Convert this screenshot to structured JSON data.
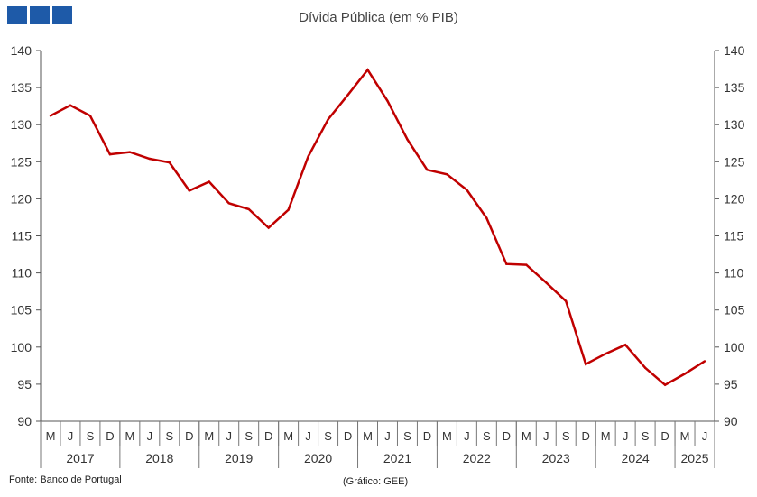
{
  "header": {
    "logo_icon": "three-blue-squares-logo",
    "logo_color": "#1e5aa8"
  },
  "footer": {
    "source": "Fonte: Banco de Portugal",
    "credit": "(Gráfico: GEE)"
  },
  "chart_data": {
    "type": "line",
    "title": "Dívida Pública (em % PIB)",
    "xlabel": "",
    "ylabel": "",
    "ylim": [
      90,
      140
    ],
    "yticks": [
      90,
      95,
      100,
      105,
      110,
      115,
      120,
      125,
      130,
      135,
      140
    ],
    "y_axis_both_sides": true,
    "grid": false,
    "line_color": "#c00000",
    "categories": [
      "M",
      "J",
      "S",
      "D",
      "M",
      "J",
      "S",
      "D",
      "M",
      "J",
      "S",
      "D",
      "M",
      "J",
      "S",
      "D",
      "M",
      "J",
      "S",
      "D",
      "M",
      "J",
      "S",
      "D",
      "M",
      "J",
      "S",
      "D",
      "M",
      "J",
      "S",
      "D",
      "M",
      "J"
    ],
    "years": [
      {
        "label": "2017",
        "count": 4
      },
      {
        "label": "2018",
        "count": 4
      },
      {
        "label": "2019",
        "count": 4
      },
      {
        "label": "2020",
        "count": 4
      },
      {
        "label": "2021",
        "count": 4
      },
      {
        "label": "2022",
        "count": 4
      },
      {
        "label": "2023",
        "count": 4
      },
      {
        "label": "2024",
        "count": 4
      },
      {
        "label": "2025",
        "count": 2
      }
    ],
    "series": [
      {
        "values": [
          131.2,
          132.6,
          131.2,
          126.0,
          126.3,
          125.4,
          124.9,
          121.1,
          122.3,
          119.4,
          118.6,
          116.1,
          118.5,
          125.7,
          130.7,
          134.0,
          137.4,
          133.2,
          128.0,
          123.9,
          123.3,
          121.2,
          117.4,
          111.2,
          111.1,
          108.7,
          106.2,
          97.7,
          99.1,
          100.3,
          97.2,
          94.9,
          96.4,
          98.1
        ]
      }
    ]
  }
}
